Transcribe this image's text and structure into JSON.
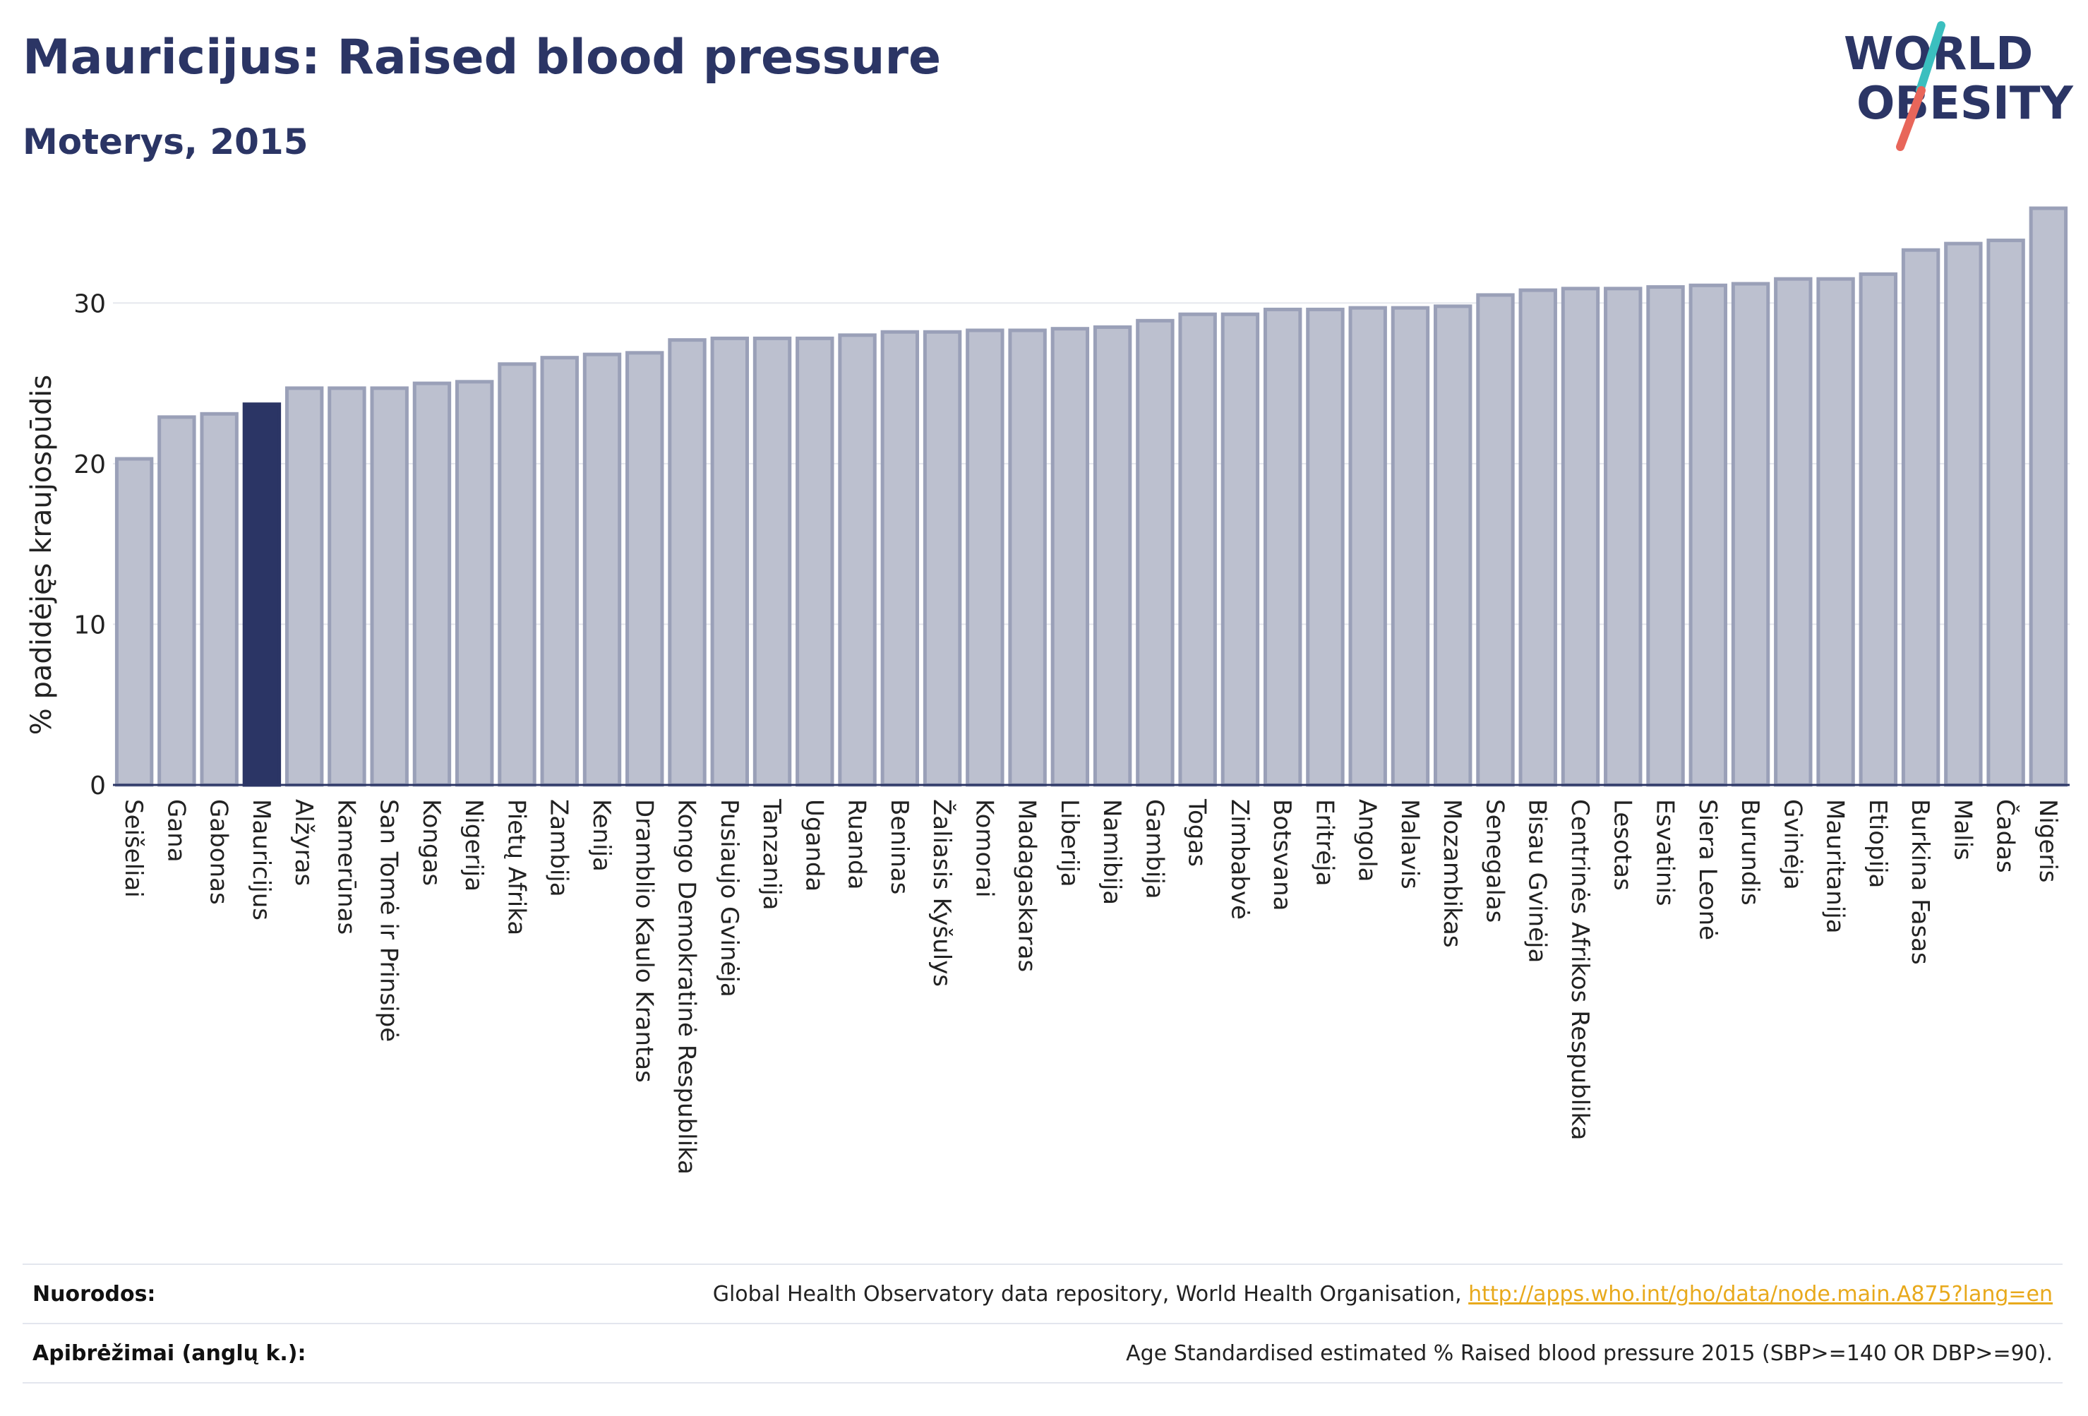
{
  "header": {
    "title": "Mauricijus: Raised blood pressure",
    "subtitle": "Moterys, 2015"
  },
  "logo": {
    "line1": "WORLD",
    "line2": "OBESITY",
    "colors": {
      "text": "#2b3565",
      "slash_top": "#3bbfbf",
      "slash_bottom": "#e8665a"
    }
  },
  "colors": {
    "bar": "#bcc0cf",
    "bar_border": "#9aa0b8",
    "highlight": "#2b3565",
    "grid": "#e6e8ee",
    "axis": "#2b3565"
  },
  "chart_data": {
    "type": "bar",
    "title": "Mauricijus: Raised blood pressure",
    "subtitle": "Moterys, 2015",
    "xlabel": "",
    "ylabel": "% padidėjęs kraujospūdis",
    "ylim": [
      0,
      37
    ],
    "yticks": [
      0,
      10,
      20,
      30
    ],
    "grid": true,
    "highlight": "Mauricijus",
    "categories": [
      "Seišeliai",
      "Gana",
      "Gabonas",
      "Mauricijus",
      "Alžyras",
      "Kamerūnas",
      "San Tomė ir Prinsipė",
      "Kongas",
      "Nigerija",
      "Pietų Afrika",
      "Zambija",
      "Kenija",
      "Dramblio Kaulo Krantas",
      "Kongo Demokratinė Respublika",
      "Pusiaujo Gvinėja",
      "Tanzanija",
      "Uganda",
      "Ruanda",
      "Beninas",
      "Žaliasis Kyšulys",
      "Komorai",
      "Madagaskaras",
      "Liberija",
      "Namibija",
      "Gambija",
      "Togas",
      "Zimbabvė",
      "Botsvana",
      "Eritrėja",
      "Angola",
      "Malavis",
      "Mozambikas",
      "Senegalas",
      "Bisau Gvinėja",
      "Centrinės Afrikos Respublika",
      "Lesotas",
      "Esvatinis",
      "Siera Leonė",
      "Burundis",
      "Gvinėja",
      "Mauritanija",
      "Etiopija",
      "Burkina Fasas",
      "Malis",
      "Čadas",
      "Nigeris"
    ],
    "values": [
      20.3,
      22.9,
      23.1,
      23.7,
      24.7,
      24.7,
      24.7,
      25.0,
      25.1,
      26.2,
      26.6,
      26.8,
      26.9,
      27.7,
      27.8,
      27.8,
      27.8,
      28.0,
      28.2,
      28.2,
      28.3,
      28.3,
      28.4,
      28.5,
      28.9,
      29.3,
      29.3,
      29.6,
      29.6,
      29.7,
      29.7,
      29.8,
      30.5,
      30.8,
      30.9,
      30.9,
      31.0,
      31.1,
      31.2,
      31.5,
      31.5,
      31.8,
      33.3,
      33.7,
      33.9,
      35.9
    ]
  },
  "footer": {
    "sources_label": "Nuorodos:",
    "sources_text": "Global Health Observatory data repository, World Health Organisation, ",
    "sources_link": "http://apps.who.int/gho/data/node.main.A875?lang=en",
    "definitions_label": "Apibrėžimai (anglų k.):",
    "definitions_text": "Age Standardised estimated % Raised blood pressure 2015 (SBP>=140 OR DBP>=90)."
  }
}
